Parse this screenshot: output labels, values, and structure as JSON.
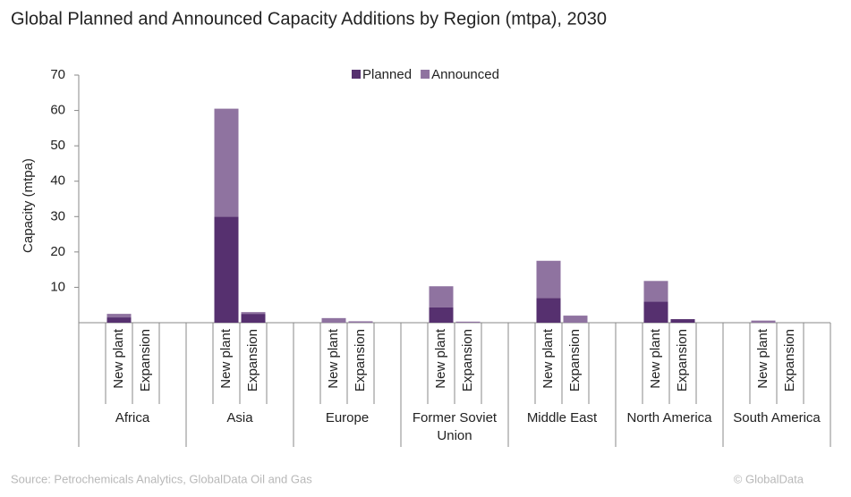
{
  "chart_data": {
    "type": "stacked_bar",
    "title": "Global Planned and Announced Capacity Additions by Region (mtpa), 2030",
    "y_label": "Capacity (mtpa)",
    "source": "Source: Petrochemicals Analytics, GlobalData Oil and Gas",
    "copyright": "© GlobalData",
    "groups": [
      "Africa",
      "Asia",
      "Europe",
      "Former Soviet Union",
      "Middle East",
      "North America",
      "South America"
    ],
    "categories": [
      "New plant",
      "Expansion",
      "New plant",
      "Expansion",
      "New plant",
      "Expansion",
      "New plant",
      "Expansion",
      "New plant",
      "Expansion",
      "New plant",
      "Expansion",
      "New plant",
      "Expansion"
    ],
    "series": [
      {
        "name": "Planned",
        "color": "#56306f",
        "values": [
          1.5,
          0,
          30,
          2.5,
          0,
          0,
          4.3,
          0,
          7,
          0,
          6,
          1,
          0,
          0
        ]
      },
      {
        "name": "Announced",
        "color": "#8f73a0",
        "values": [
          1,
          0,
          30.5,
          0.5,
          1.3,
          0.4,
          6,
          0.3,
          10.5,
          2,
          5.8,
          0,
          0.6,
          0
        ]
      }
    ],
    "ylim": [
      0,
      70
    ],
    "yticks": [
      10,
      20,
      30,
      40,
      50,
      60,
      70
    ],
    "legend": "top"
  }
}
